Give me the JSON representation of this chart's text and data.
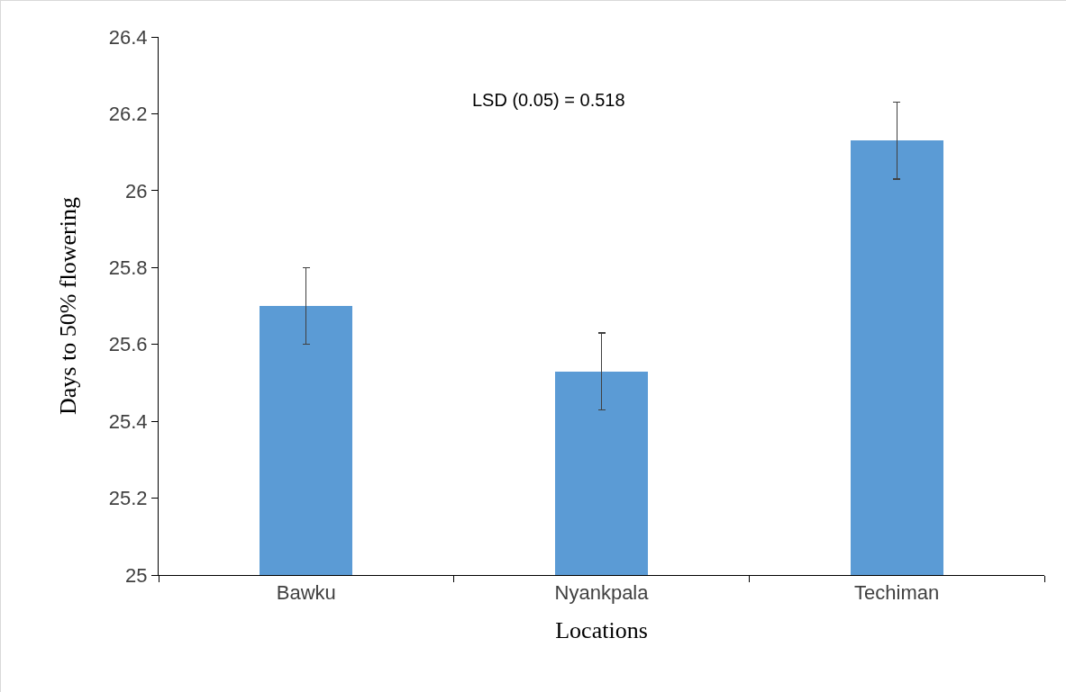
{
  "chart_data": {
    "type": "bar",
    "xlabel": "Locations",
    "ylabel": "Days to 50% flowering",
    "categories": [
      "Bawku",
      "Nyankpala",
      "Techiman"
    ],
    "values": [
      25.7,
      25.53,
      26.13
    ],
    "errors": [
      0.1,
      0.1,
      0.1
    ],
    "color": "#5b9bd5",
    "ylim": [
      25,
      26.4
    ],
    "yticks": [
      25,
      25.2,
      25.4,
      25.6,
      25.8,
      26,
      26.2,
      26.4
    ],
    "grid": false,
    "legend": false,
    "annotations": [
      "LSD (0.05) = 0.518"
    ]
  }
}
